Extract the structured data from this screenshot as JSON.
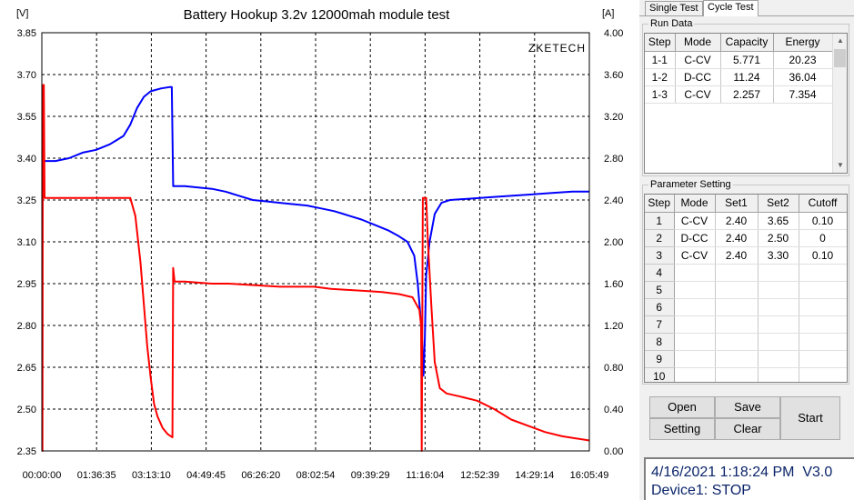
{
  "chart_data": {
    "type": "line",
    "title": "Battery Hookup 3.2v 12000mah module test",
    "left_axis": {
      "unit": "[V]",
      "range": [
        2.35,
        3.85
      ],
      "ticks": [
        "3.85",
        "3.70",
        "3.55",
        "3.40",
        "3.25",
        "3.10",
        "2.95",
        "2.80",
        "2.65",
        "2.50",
        "2.35"
      ]
    },
    "right_axis": {
      "unit": "[A]",
      "range": [
        0,
        4.0
      ],
      "ticks": [
        "4.00",
        "3.60",
        "3.20",
        "2.80",
        "2.40",
        "2.00",
        "1.60",
        "1.20",
        "0.80",
        "0.40",
        "0.00"
      ]
    },
    "x_ticks": [
      "00:00:00",
      "01:36:35",
      "03:13:10",
      "04:49:45",
      "06:26:20",
      "08:02:54",
      "09:39:29",
      "11:16:04",
      "12:52:39",
      "14:29:14",
      "16:05:49"
    ],
    "x_range_hours": [
      0,
      16.097
    ],
    "watermark": "ZKETECH",
    "grid": true,
    "series": [
      {
        "axis": "left",
        "color": "#0000ff",
        "points": [
          [
            0,
            3.39
          ],
          [
            0.4,
            3.39
          ],
          [
            0.8,
            3.4
          ],
          [
            1.2,
            3.42
          ],
          [
            1.6,
            3.43
          ],
          [
            2.0,
            3.45
          ],
          [
            2.4,
            3.48
          ],
          [
            2.6,
            3.52
          ],
          [
            2.8,
            3.58
          ],
          [
            3.0,
            3.62
          ],
          [
            3.2,
            3.64
          ],
          [
            3.5,
            3.65
          ],
          [
            3.75,
            3.655
          ],
          [
            3.82,
            3.655
          ],
          [
            3.86,
            3.3
          ],
          [
            4.2,
            3.3
          ],
          [
            4.6,
            3.295
          ],
          [
            5.0,
            3.29
          ],
          [
            5.4,
            3.28
          ],
          [
            5.8,
            3.265
          ],
          [
            6.2,
            3.25
          ],
          [
            6.6,
            3.245
          ],
          [
            7.0,
            3.24
          ],
          [
            7.4,
            3.235
          ],
          [
            7.8,
            3.23
          ],
          [
            8.2,
            3.22
          ],
          [
            8.6,
            3.21
          ],
          [
            9.0,
            3.195
          ],
          [
            9.4,
            3.18
          ],
          [
            9.8,
            3.16
          ],
          [
            10.2,
            3.14
          ],
          [
            10.5,
            3.12
          ],
          [
            10.75,
            3.1
          ],
          [
            10.95,
            3.05
          ],
          [
            11.05,
            2.95
          ],
          [
            11.12,
            2.85
          ],
          [
            11.18,
            2.75
          ],
          [
            11.22,
            2.62
          ],
          [
            11.26,
            2.75
          ],
          [
            11.3,
            2.98
          ],
          [
            11.4,
            3.1
          ],
          [
            11.55,
            3.2
          ],
          [
            11.75,
            3.24
          ],
          [
            12.0,
            3.25
          ],
          [
            12.6,
            3.255
          ],
          [
            13.2,
            3.26
          ],
          [
            13.8,
            3.265
          ],
          [
            14.4,
            3.27
          ],
          [
            15.0,
            3.275
          ],
          [
            15.6,
            3.28
          ],
          [
            16.097,
            3.28
          ]
        ]
      },
      {
        "axis": "right",
        "color": "#ff0000",
        "points": [
          [
            0,
            0
          ],
          [
            0.02,
            0
          ],
          [
            0.03,
            3.5
          ],
          [
            0.06,
            3.5
          ],
          [
            0.08,
            2.42
          ],
          [
            1.0,
            2.42
          ],
          [
            2.0,
            2.42
          ],
          [
            2.6,
            2.42
          ],
          [
            2.75,
            2.25
          ],
          [
            2.9,
            1.8
          ],
          [
            3.0,
            1.4
          ],
          [
            3.1,
            1.0
          ],
          [
            3.2,
            0.7
          ],
          [
            3.3,
            0.45
          ],
          [
            3.4,
            0.33
          ],
          [
            3.55,
            0.22
          ],
          [
            3.7,
            0.16
          ],
          [
            3.84,
            0.13
          ],
          [
            3.86,
            1.75
          ],
          [
            3.9,
            1.62
          ],
          [
            4.2,
            1.62
          ],
          [
            4.6,
            1.61
          ],
          [
            5.0,
            1.6
          ],
          [
            5.5,
            1.6
          ],
          [
            6.0,
            1.59
          ],
          [
            6.5,
            1.58
          ],
          [
            7.0,
            1.57
          ],
          [
            7.5,
            1.57
          ],
          [
            8.0,
            1.57
          ],
          [
            8.5,
            1.55
          ],
          [
            9.0,
            1.54
          ],
          [
            9.5,
            1.53
          ],
          [
            10.0,
            1.52
          ],
          [
            10.5,
            1.5
          ],
          [
            10.9,
            1.47
          ],
          [
            11.1,
            1.35
          ],
          [
            11.15,
            1.2
          ],
          [
            11.17,
            0
          ],
          [
            11.2,
            2.42
          ],
          [
            11.3,
            2.42
          ],
          [
            11.35,
            2.0
          ],
          [
            11.45,
            1.4
          ],
          [
            11.55,
            0.85
          ],
          [
            11.7,
            0.6
          ],
          [
            11.9,
            0.55
          ],
          [
            12.3,
            0.52
          ],
          [
            12.8,
            0.48
          ],
          [
            13.3,
            0.4
          ],
          [
            13.8,
            0.3
          ],
          [
            14.3,
            0.24
          ],
          [
            14.8,
            0.18
          ],
          [
            15.3,
            0.14
          ],
          [
            15.7,
            0.12
          ],
          [
            16.097,
            0.1
          ]
        ]
      }
    ]
  },
  "tabs": [
    "Single Test",
    "Cycle Test"
  ],
  "run_data": {
    "label": "Run Data",
    "columns": [
      "Step",
      "Mode",
      "Capacity",
      "Energy"
    ],
    "rows": [
      [
        "1-1",
        "C-CV",
        "5.771",
        "20.23"
      ],
      [
        "1-2",
        "D-CC",
        "11.24",
        "36.04"
      ],
      [
        "1-3",
        "C-CV",
        "2.257",
        "7.354"
      ]
    ]
  },
  "params": {
    "label": "Parameter Setting",
    "columns": [
      "Step",
      "Mode",
      "Set1",
      "Set2",
      "Cutoff"
    ],
    "rows": [
      [
        "1",
        "C-CV",
        "2.40",
        "3.65",
        "0.10"
      ],
      [
        "2",
        "D-CC",
        "2.40",
        "2.50",
        "0"
      ],
      [
        "3",
        "C-CV",
        "2.40",
        "3.30",
        "0.10"
      ],
      [
        "4",
        "",
        "",
        "",
        ""
      ],
      [
        "5",
        "",
        "",
        "",
        ""
      ],
      [
        "6",
        "",
        "",
        "",
        ""
      ],
      [
        "7",
        "",
        "",
        "",
        ""
      ],
      [
        "8",
        "",
        "",
        "",
        ""
      ],
      [
        "9",
        "",
        "",
        "",
        ""
      ],
      [
        "10",
        "",
        "",
        "",
        ""
      ]
    ]
  },
  "buttons": {
    "open": "Open",
    "save": "Save",
    "setting": "Setting",
    "clear": "Clear",
    "start": "Start"
  },
  "status": {
    "datetime": "4/16/2021 1:18:24 PM",
    "version": "V3.0",
    "device": "Device1: STOP"
  }
}
